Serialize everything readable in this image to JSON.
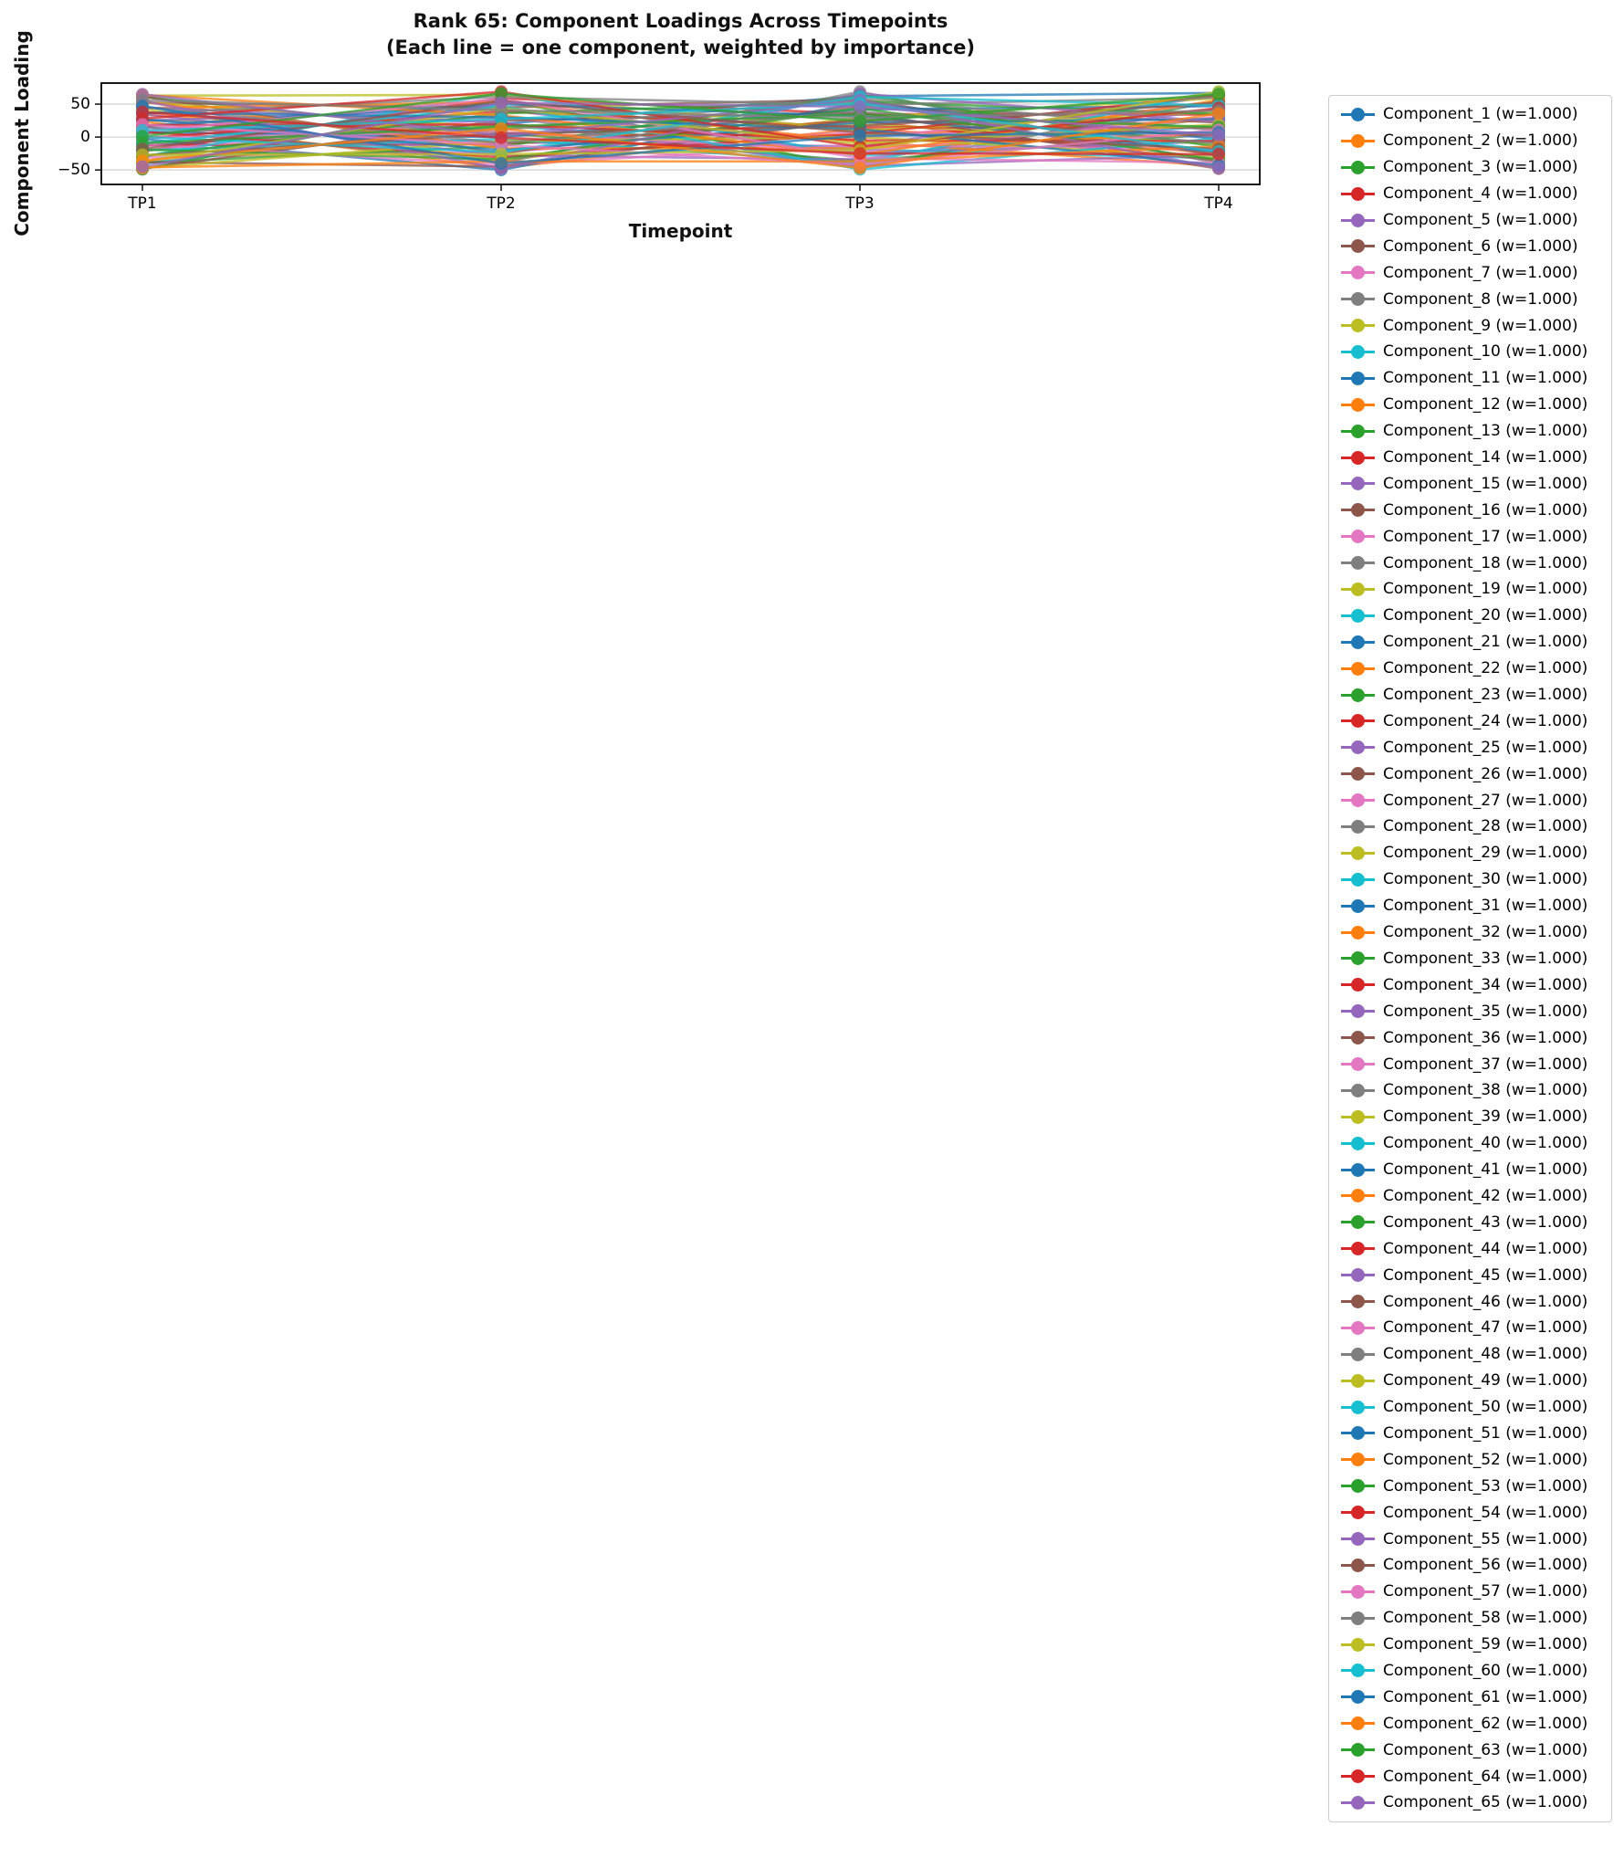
{
  "chart_data": {
    "type": "line",
    "title": "Rank 65: Component Loadings Across Timepoints",
    "subtitle": "(Each line = one component, weighted by importance)",
    "xlabel": "Timepoint",
    "ylabel": "Component Loading",
    "x_categories": [
      "TP1",
      "TP2",
      "TP3",
      "TP4"
    ],
    "yticks": [
      -50,
      0,
      50
    ],
    "yticklabels": [
      "−50",
      "0",
      "50"
    ],
    "ylim": [
      -72,
      82
    ],
    "grid": true,
    "legend_position": "right",
    "line_alpha": 0.75,
    "palette": [
      "#1f77b4",
      "#ff7f0e",
      "#2ca02c",
      "#d62728",
      "#9467bd",
      "#8c564b",
      "#e377c2",
      "#7f7f7f",
      "#bcbd22",
      "#17becf"
    ],
    "series": [
      {
        "label": "Component_1 (w=1.000)",
        "values": [
          -13,
          20,
          62,
          67
        ]
      },
      {
        "label": "Component_2 (w=1.000)",
        "values": [
          24,
          -47,
          13,
          -24
        ]
      },
      {
        "label": "Component_3 (w=1.000)",
        "values": [
          61,
          6,
          -36,
          5
        ]
      },
      {
        "label": "Component_4 (w=1.000)",
        "values": [
          -22,
          59,
          35,
          34
        ]
      },
      {
        "label": "Component_5 (w=1.000)",
        "values": [
          15,
          -8,
          -14,
          63
        ]
      },
      {
        "label": "Component_6 (w=1.000)",
        "values": [
          52,
          45,
          57,
          -28
        ]
      },
      {
        "label": "Component_7 (w=1.000)",
        "values": [
          -31,
          -22,
          8,
          1
        ]
      },
      {
        "label": "Component_8 (w=1.000)",
        "values": [
          6,
          31,
          -41,
          30
        ]
      },
      {
        "label": "Component_9 (w=1.000)",
        "values": [
          43,
          -36,
          30,
          59
        ]
      },
      {
        "label": "Component_10 (w=1.000)",
        "values": [
          -40,
          17,
          -19,
          -32
        ]
      },
      {
        "label": "Component_11 (w=1.000)",
        "values": [
          -3,
          -50,
          52,
          -3
        ]
      },
      {
        "label": "Component_12 (w=1.000)",
        "values": [
          34,
          3,
          3,
          26
        ]
      },
      {
        "label": "Component_13 (w=1.000)",
        "values": [
          -49,
          56,
          -46,
          55
        ]
      },
      {
        "label": "Component_14 (w=1.000)",
        "values": [
          -12,
          -11,
          25,
          -36
        ]
      },
      {
        "label": "Component_15 (w=1.000)",
        "values": [
          25,
          42,
          -24,
          -7
        ]
      },
      {
        "label": "Component_16 (w=1.000)",
        "values": [
          62,
          -25,
          47,
          22
        ]
      },
      {
        "label": "Component_17 (w=1.000)",
        "values": [
          -21,
          28,
          -2,
          51
        ]
      },
      {
        "label": "Component_18 (w=1.000)",
        "values": [
          16,
          -39,
          69,
          -40
        ]
      },
      {
        "label": "Component_19 (w=1.000)",
        "values": [
          53,
          14,
          20,
          -11
        ]
      },
      {
        "label": "Component_20 (w=1.000)",
        "values": [
          -30,
          67,
          -29,
          18
        ]
      },
      {
        "label": "Component_21 (w=1.000)",
        "values": [
          7,
          0,
          42,
          47
        ]
      },
      {
        "label": "Component_22 (w=1.000)",
        "values": [
          44,
          53,
          -7,
          -44
        ]
      },
      {
        "label": "Component_23 (w=1.000)",
        "values": [
          -39,
          -14,
          64,
          -15
        ]
      },
      {
        "label": "Component_24 (w=1.000)",
        "values": [
          -2,
          39,
          15,
          14
        ]
      },
      {
        "label": "Component_25 (w=1.000)",
        "values": [
          35,
          -28,
          -34,
          43
        ]
      },
      {
        "label": "Component_26 (w=1.000)",
        "values": [
          -48,
          25,
          37,
          -48
        ]
      },
      {
        "label": "Component_27 (w=1.000)",
        "values": [
          -11,
          -42,
          -12,
          -19
        ]
      },
      {
        "label": "Component_28 (w=1.000)",
        "values": [
          26,
          11,
          59,
          10
        ]
      },
      {
        "label": "Component_29 (w=1.000)",
        "values": [
          63,
          64,
          10,
          39
        ]
      },
      {
        "label": "Component_30 (w=1.000)",
        "values": [
          -20,
          -3,
          -39,
          68
        ]
      },
      {
        "label": "Component_31 (w=1.000)",
        "values": [
          17,
          50,
          32,
          -23
        ]
      },
      {
        "label": "Component_32 (w=1.000)",
        "values": [
          54,
          -17,
          -17,
          6
        ]
      },
      {
        "label": "Component_33 (w=1.000)",
        "values": [
          -29,
          36,
          54,
          35
        ]
      },
      {
        "label": "Component_34 (w=1.000)",
        "values": [
          8,
          -31,
          5,
          64
        ]
      },
      {
        "label": "Component_35 (w=1.000)",
        "values": [
          45,
          22,
          -44,
          -27
        ]
      },
      {
        "label": "Component_36 (w=1.000)",
        "values": [
          -38,
          -45,
          27,
          2
        ]
      },
      {
        "label": "Component_37 (w=1.000)",
        "values": [
          -1,
          8,
          -22,
          31
        ]
      },
      {
        "label": "Component_38 (w=1.000)",
        "values": [
          36,
          61,
          49,
          60
        ]
      },
      {
        "label": "Component_39 (w=1.000)",
        "values": [
          -47,
          -6,
          0,
          -31
        ]
      },
      {
        "label": "Component_40 (w=1.000)",
        "values": [
          -10,
          47,
          -49,
          -2
        ]
      },
      {
        "label": "Component_41 (w=1.000)",
        "values": [
          27,
          -20,
          22,
          27
        ]
      },
      {
        "label": "Component_42 (w=1.000)",
        "values": [
          64,
          33,
          -27,
          56
        ]
      },
      {
        "label": "Component_43 (w=1.000)",
        "values": [
          -19,
          -34,
          44,
          -35
        ]
      },
      {
        "label": "Component_44 (w=1.000)",
        "values": [
          18,
          19,
          -5,
          -6
        ]
      },
      {
        "label": "Component_45 (w=1.000)",
        "values": [
          55,
          -48,
          66,
          23
        ]
      },
      {
        "label": "Component_46 (w=1.000)",
        "values": [
          -28,
          5,
          17,
          52
        ]
      },
      {
        "label": "Component_47 (w=1.000)",
        "values": [
          9,
          58,
          -32,
          -39
        ]
      },
      {
        "label": "Component_48 (w=1.000)",
        "values": [
          46,
          -9,
          39,
          -10
        ]
      },
      {
        "label": "Component_49 (w=1.000)",
        "values": [
          -37,
          44,
          -10,
          19
        ]
      },
      {
        "label": "Component_50 (w=1.000)",
        "values": [
          0,
          -23,
          61,
          48
        ]
      },
      {
        "label": "Component_51 (w=1.000)",
        "values": [
          37,
          30,
          12,
          -43
        ]
      },
      {
        "label": "Component_52 (w=1.000)",
        "values": [
          -46,
          -37,
          -37,
          -14
        ]
      },
      {
        "label": "Component_53 (w=1.000)",
        "values": [
          -9,
          16,
          34,
          15
        ]
      },
      {
        "label": "Component_54 (w=1.000)",
        "values": [
          28,
          69,
          -15,
          44
        ]
      },
      {
        "label": "Component_55 (w=1.000)",
        "values": [
          65,
          2,
          56,
          -47
        ]
      },
      {
        "label": "Component_56 (w=1.000)",
        "values": [
          -18,
          55,
          7,
          -18
        ]
      },
      {
        "label": "Component_57 (w=1.000)",
        "values": [
          19,
          -12,
          -42,
          11
        ]
      },
      {
        "label": "Component_58 (w=1.000)",
        "values": [
          56,
          41,
          29,
          40
        ]
      },
      {
        "label": "Component_59 (w=1.000)",
        "values": [
          -27,
          -26,
          -20,
          69
        ]
      },
      {
        "label": "Component_60 (w=1.000)",
        "values": [
          10,
          27,
          51,
          -22
        ]
      },
      {
        "label": "Component_61 (w=1.000)",
        "values": [
          47,
          -40,
          2,
          7
        ]
      },
      {
        "label": "Component_62 (w=1.000)",
        "values": [
          -36,
          13,
          -47,
          36
        ]
      },
      {
        "label": "Component_63 (w=1.000)",
        "values": [
          1,
          66,
          24,
          65
        ]
      },
      {
        "label": "Component_64 (w=1.000)",
        "values": [
          38,
          -1,
          -25,
          -26
        ]
      },
      {
        "label": "Component_65 (w=1.000)",
        "values": [
          -45,
          52,
          46,
          3
        ]
      }
    ]
  }
}
